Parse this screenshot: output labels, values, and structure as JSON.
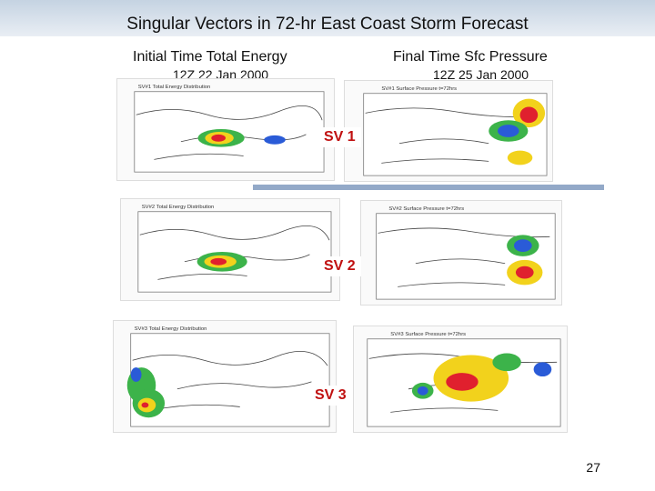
{
  "slide": {
    "title": "Singular Vectors in 72-hr East Coast Storm Forecast",
    "left_heading": "Initial Time Total Energy",
    "left_date": "12Z 22 Jan 2000",
    "right_heading": "Final Time Sfc Pressure",
    "right_date": "12Z 25 Jan 2000",
    "page_number": "27"
  },
  "rows": [
    {
      "label": "SV 1",
      "left_caption": "SV#1 Total Energy Distribution",
      "right_caption": "SV#1 Surface Pressure   t=72hrs"
    },
    {
      "label": "SV 2",
      "left_caption": "SV#2 Total Energy Distribution",
      "right_caption": "SV#2 Surface Pressure   t=72hrs"
    },
    {
      "label": "SV 3",
      "left_caption": "SV#3 Total Energy Distribution",
      "right_caption": "SV#3 Surface Pressure   t=72hrs"
    }
  ],
  "colors": {
    "header_bar": "#c5d3e2",
    "separator": "#93a9c8",
    "sv_label": "#c01010",
    "contour_red": "#e0202e",
    "contour_green": "#3cb34a",
    "contour_yellow": "#f2d21c",
    "contour_blue": "#2a5bd7"
  }
}
